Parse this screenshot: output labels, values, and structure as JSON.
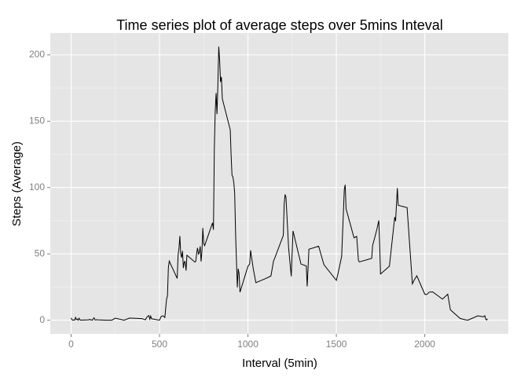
{
  "chart_data": {
    "type": "line",
    "title": "Time series plot of average steps over 5mins Inteval",
    "x_label": "Interval (5min)",
    "y_label": "Steps (Average)",
    "x": [
      0,
      5,
      10,
      15,
      20,
      25,
      30,
      35,
      40,
      45,
      50,
      55,
      100,
      105,
      110,
      115,
      120,
      125,
      130,
      135,
      140,
      145,
      150,
      200,
      230,
      250,
      300,
      330,
      400,
      420,
      430,
      440,
      445,
      450,
      455,
      500,
      505,
      510,
      520,
      530,
      540,
      545,
      550,
      555,
      600,
      605,
      610,
      615,
      620,
      625,
      630,
      635,
      640,
      645,
      650,
      655,
      700,
      705,
      710,
      715,
      720,
      725,
      730,
      735,
      740,
      745,
      750,
      755,
      800,
      805,
      810,
      815,
      820,
      825,
      830,
      835,
      840,
      845,
      850,
      855,
      900,
      905,
      910,
      915,
      920,
      925,
      930,
      935,
      940,
      945,
      950,
      955,
      1000,
      1010,
      1015,
      1030,
      1045,
      1100,
      1130,
      1145,
      1150,
      1200,
      1205,
      1210,
      1215,
      1230,
      1245,
      1255,
      1300,
      1330,
      1335,
      1345,
      1400,
      1415,
      1430,
      1500,
      1510,
      1530,
      1545,
      1550,
      1555,
      1600,
      1615,
      1625,
      1630,
      1700,
      1705,
      1715,
      1730,
      1740,
      1745,
      1750,
      1800,
      1830,
      1835,
      1845,
      1850,
      1900,
      1930,
      1940,
      1955,
      2000,
      2010,
      2015,
      2025,
      2045,
      2100,
      2130,
      2145,
      2200,
      2230,
      2245,
      2300,
      2330,
      2340,
      2345,
      2350,
      2355
    ],
    "series": [
      {
        "name": "steps",
        "color": "#000000",
        "values": [
          1.7,
          0.3,
          0.1,
          0.2,
          0.1,
          2.1,
          0.5,
          0.9,
          0,
          1.5,
          0.3,
          0.1,
          0.3,
          0.7,
          0.2,
          0.3,
          0,
          1.1,
          1.8,
          0.2,
          0.2,
          0.4,
          0.3,
          0,
          0,
          1.5,
          0,
          1.6,
          1.2,
          0.3,
          2.6,
          3.5,
          0.8,
          3.1,
          1.1,
          0,
          1.6,
          3,
          3.3,
          2.1,
          16,
          18.3,
          39.5,
          44.5,
          31.5,
          49.3,
          53.8,
          63.5,
          50,
          47.1,
          52.2,
          39.3,
          44,
          44.2,
          37.4,
          49,
          43.8,
          44.4,
          50.5,
          54.5,
          49.9,
          50.9,
          55.7,
          44.3,
          52.3,
          69.5,
          57.8,
          56.2,
          73.4,
          68.2,
          129.4,
          157.5,
          171.2,
          155.4,
          177.3,
          206.2,
          195.9,
          179.6,
          183.4,
          167,
          143.5,
          124,
          109.1,
          108.1,
          103.7,
          96,
          66.2,
          45.2,
          24.8,
          38.8,
          35,
          21.1,
          40.6,
          42.4,
          52.7,
          38.9,
          28.3,
          31.4,
          33.3,
          44.8,
          46.2,
          63.9,
          87.6,
          94.8,
          92.8,
          54.5,
          33.1,
          67.3,
          42.3,
          40.9,
          25.5,
          53.5,
          55.8,
          48.7,
          41.8,
          30,
          35.5,
          48.1,
          98.7,
          102.1,
          84,
          62.1,
          63.2,
          45,
          43.9,
          46.6,
          56.3,
          61.2,
          68.9,
          75.1,
          56.5,
          34.8,
          40.7,
          77.7,
          74.7,
          99.5,
          86.6,
          84.9,
          27.4,
          30.2,
          33.5,
          19.6,
          19.3,
          19.8,
          21.2,
          21.3,
          15.9,
          19.6,
          7.8,
          1.3,
          0.3,
          0.1,
          3.3,
          2.6,
          3.3,
          0.7,
          0.2,
          1.1
        ]
      }
    ],
    "xlim": [
      -117.75,
      2472.75
    ],
    "ylim": [
      -10.3,
      216.5
    ],
    "xticks": [
      0,
      500,
      1000,
      1500,
      2000
    ],
    "yticks": [
      0,
      50,
      100,
      150,
      200
    ],
    "grid": true
  }
}
